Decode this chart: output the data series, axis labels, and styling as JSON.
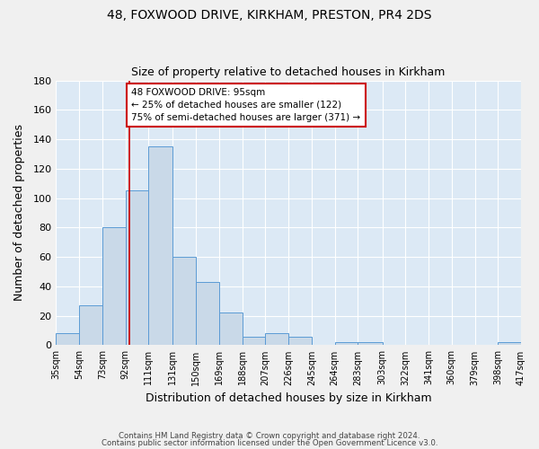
{
  "title1": "48, FOXWOOD DRIVE, KIRKHAM, PRESTON, PR4 2DS",
  "title2": "Size of property relative to detached houses in Kirkham",
  "xlabel": "Distribution of detached houses by size in Kirkham",
  "ylabel": "Number of detached properties",
  "bar_edges": [
    35,
    54,
    73,
    92,
    111,
    131,
    150,
    169,
    188,
    207,
    226,
    245,
    264,
    283,
    303,
    322,
    341,
    360,
    379,
    398,
    417
  ],
  "bar_heights": [
    8,
    27,
    80,
    105,
    135,
    60,
    43,
    22,
    6,
    8,
    6,
    0,
    2,
    2,
    0,
    0,
    0,
    0,
    0,
    2
  ],
  "bar_color": "#c9d9e8",
  "bar_edge_color": "#5b9bd5",
  "grid_color": "#ffffff",
  "bg_color": "#dce9f5",
  "fig_bg_color": "#f0f0f0",
  "ylim": [
    0,
    180
  ],
  "yticks": [
    0,
    20,
    40,
    60,
    80,
    100,
    120,
    140,
    160,
    180
  ],
  "property_line_x": 95,
  "property_line_color": "#cc0000",
  "annotation_text": "48 FOXWOOD DRIVE: 95sqm\n← 25% of detached houses are smaller (122)\n75% of semi-detached houses are larger (371) →",
  "annotation_box_color": "#ffffff",
  "annotation_box_edge": "#cc0000",
  "footer1": "Contains HM Land Registry data © Crown copyright and database right 2024.",
  "footer2": "Contains public sector information licensed under the Open Government Licence v3.0.",
  "tick_labels": [
    "35sqm",
    "54sqm",
    "73sqm",
    "92sqm",
    "111sqm",
    "131sqm",
    "150sqm",
    "169sqm",
    "188sqm",
    "207sqm",
    "226sqm",
    "245sqm",
    "264sqm",
    "283sqm",
    "303sqm",
    "322sqm",
    "341sqm",
    "360sqm",
    "379sqm",
    "398sqm",
    "417sqm"
  ]
}
